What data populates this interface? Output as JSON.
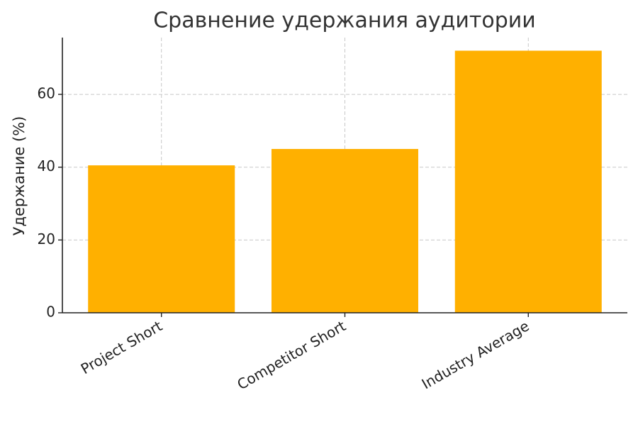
{
  "chart_data": {
    "type": "bar",
    "title": "Сравнение удержания аудитории",
    "y_label": "Удержание (%)",
    "categories": [
      "Project Short",
      "Competitor Short",
      "Industry Average"
    ],
    "values": [
      40.5,
      45,
      72
    ],
    "color": "#ffb000",
    "ylim": [
      0,
      75.6
    ],
    "yticks": [
      0,
      20,
      40,
      60
    ],
    "grid": true
  }
}
